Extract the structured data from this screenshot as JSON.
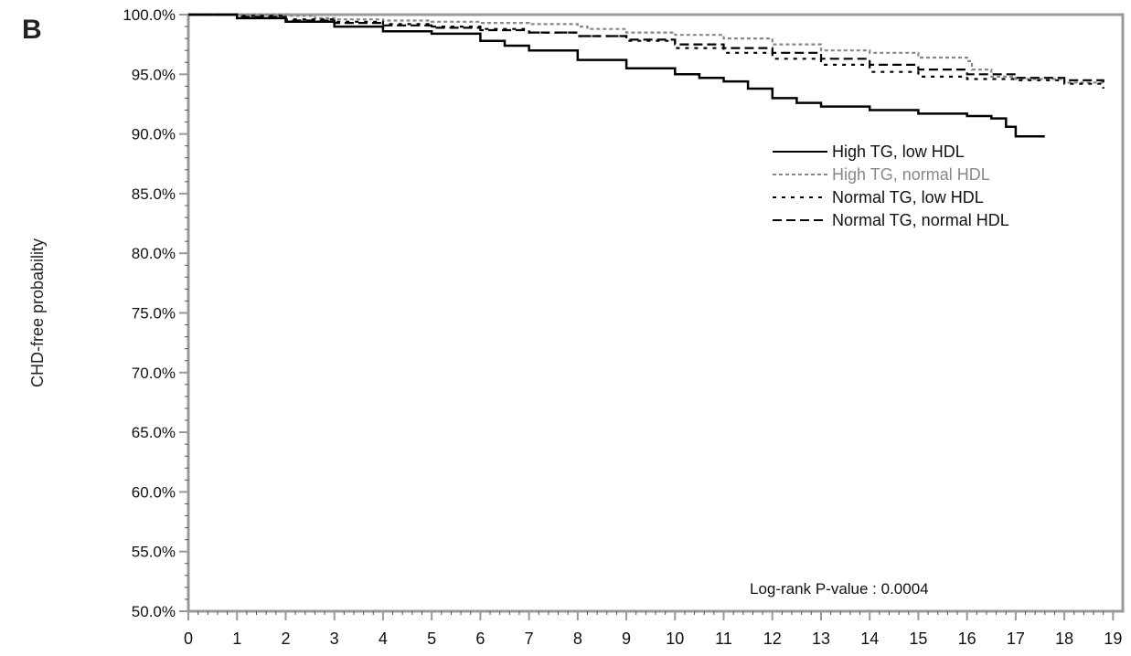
{
  "panel_label": "B",
  "chart_data": {
    "type": "line",
    "ylabel": "CHD-free probability",
    "xlabel": "",
    "xlim": [
      0,
      19.2
    ],
    "ylim": [
      50,
      100
    ],
    "x_ticks": [
      0,
      1,
      2,
      3,
      4,
      5,
      6,
      7,
      8,
      9,
      10,
      11,
      12,
      13,
      14,
      15,
      16,
      17,
      18,
      19
    ],
    "x_tick_labels": [
      "0",
      "1",
      "2",
      "3",
      "4",
      "5",
      "6",
      "7",
      "8",
      "9",
      "10",
      "11",
      "12",
      "13",
      "14",
      "15",
      "16",
      "17",
      "18",
      "19"
    ],
    "y_ticks": [
      50,
      55,
      60,
      65,
      70,
      75,
      80,
      85,
      90,
      95,
      100
    ],
    "y_tick_labels": [
      "50.0%",
      "55.0%",
      "60.0%",
      "65.0%",
      "70.0%",
      "75.0%",
      "80.0%",
      "85.0%",
      "90.0%",
      "95.0%",
      "100.0%"
    ],
    "grid": false,
    "legend_position": "top-right",
    "annotation": "Log-rank P-value : 0.0004",
    "step": true,
    "series": [
      {
        "name": "High TG, low HDL",
        "color": "#000000",
        "style": "solid",
        "x": [
          0,
          1,
          2,
          3,
          4,
          5,
          6,
          6.5,
          7,
          8,
          9,
          10,
          10.5,
          11,
          11.5,
          12,
          12.5,
          13,
          14,
          15,
          16,
          16.5,
          16.8,
          17,
          17.6
        ],
        "y": [
          100,
          99.7,
          99.4,
          99.0,
          98.6,
          98.4,
          97.8,
          97.4,
          97.0,
          96.2,
          95.5,
          95.0,
          94.7,
          94.4,
          93.8,
          93.0,
          92.6,
          92.3,
          92.0,
          91.7,
          91.5,
          91.3,
          90.6,
          89.8,
          89.8
        ]
      },
      {
        "name": "High TG, normal HDL",
        "color": "#888888",
        "style": "dashed",
        "x": [
          0,
          1,
          2,
          2.6,
          3,
          4,
          5,
          6,
          7,
          8,
          8.2,
          9,
          10,
          11,
          12,
          13,
          14,
          15,
          16,
          16.1,
          16.5,
          17,
          18,
          18.8
        ],
        "y": [
          100,
          100,
          99.9,
          99.7,
          99.6,
          99.5,
          99.4,
          99.3,
          99.2,
          99.0,
          98.8,
          98.5,
          98.3,
          98.0,
          97.5,
          97.0,
          96.8,
          96.4,
          96.1,
          95.4,
          94.8,
          94.6,
          94.3,
          94.2
        ]
      },
      {
        "name": "Normal TG, low HDL",
        "color": "#000000",
        "style": "dotted",
        "x": [
          0,
          1,
          2,
          3,
          4,
          5,
          6,
          7,
          8,
          9,
          10,
          11,
          12,
          13,
          14,
          15,
          16,
          17,
          18,
          18.8
        ],
        "y": [
          100,
          99.9,
          99.6,
          99.4,
          99.2,
          99.0,
          98.8,
          98.5,
          98.2,
          97.8,
          97.2,
          96.8,
          96.3,
          95.8,
          95.2,
          94.8,
          94.6,
          94.5,
          94.2,
          93.8
        ]
      },
      {
        "name": "Normal TG, normal HDL",
        "color": "#000000",
        "style": "longdash",
        "x": [
          0,
          1,
          2,
          3,
          4,
          5,
          6,
          7,
          8,
          9,
          10,
          11,
          12,
          13,
          14,
          15,
          16,
          17,
          18,
          18.8
        ],
        "y": [
          100,
          99.8,
          99.5,
          99.3,
          99.1,
          98.9,
          98.7,
          98.5,
          98.2,
          97.9,
          97.5,
          97.2,
          96.8,
          96.3,
          95.8,
          95.4,
          95.0,
          94.7,
          94.5,
          94.3
        ]
      }
    ]
  }
}
